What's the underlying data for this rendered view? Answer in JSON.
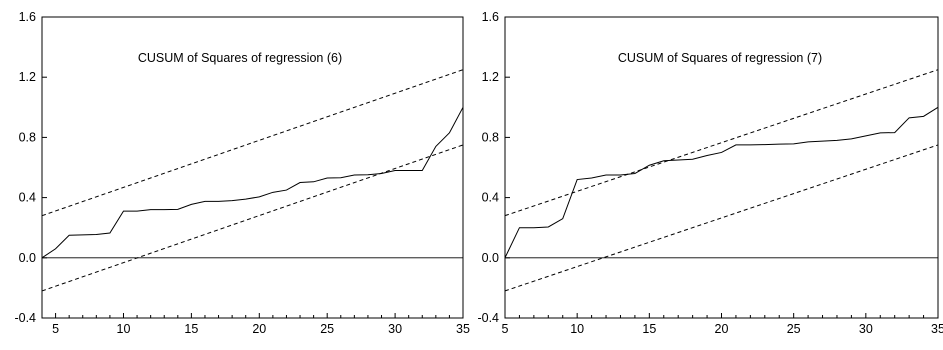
{
  "chart_data": [
    {
      "type": "line",
      "title": "CUSUM of Squares of regression (6)",
      "xlabel": "",
      "ylabel": "",
      "xlim": [
        4,
        35
      ],
      "ylim": [
        -0.4,
        1.6
      ],
      "x_ticks": [
        5,
        10,
        15,
        20,
        25,
        30,
        35
      ],
      "y_ticks": [
        -0.4,
        0.0,
        0.4,
        0.8,
        1.2,
        1.6
      ],
      "y_tick_labels": [
        "-0.4",
        "0.0",
        "0.4",
        "0.8",
        "1.2",
        "1.6"
      ],
      "grid": false,
      "zero_line": true,
      "series": [
        {
          "style": "solid",
          "x": [
            4,
            5,
            6,
            7,
            8,
            9,
            10,
            11,
            12,
            13,
            14,
            15,
            16,
            17,
            18,
            19,
            20,
            21,
            22,
            23,
            24,
            25,
            26,
            27,
            28,
            29,
            30,
            31,
            32,
            33,
            34,
            35
          ],
          "y": [
            0.0,
            0.06,
            0.15,
            0.152,
            0.155,
            0.165,
            0.31,
            0.31,
            0.32,
            0.32,
            0.322,
            0.355,
            0.375,
            0.375,
            0.38,
            0.39,
            0.405,
            0.435,
            0.45,
            0.5,
            0.505,
            0.53,
            0.532,
            0.55,
            0.552,
            0.56,
            0.58,
            0.58,
            0.58,
            0.74,
            0.83,
            1.0
          ]
        },
        {
          "style": "dashed",
          "x": [
            4,
            35
          ],
          "y": [
            0.28,
            1.25
          ]
        },
        {
          "style": "dashed",
          "x": [
            4,
            35
          ],
          "y": [
            -0.22,
            0.75
          ]
        }
      ]
    },
    {
      "type": "line",
      "title": "CUSUM of Squares of regression (7)",
      "xlabel": "",
      "ylabel": "",
      "xlim": [
        5,
        35
      ],
      "ylim": [
        -0.4,
        1.6
      ],
      "x_ticks": [
        5,
        10,
        15,
        20,
        25,
        30,
        35
      ],
      "y_ticks": [
        -0.4,
        0.0,
        0.4,
        0.8,
        1.2,
        1.6
      ],
      "y_tick_labels": [
        "-0.4",
        "0.0",
        "0.4",
        "0.8",
        "1.2",
        "1.6"
      ],
      "grid": false,
      "zero_line": true,
      "series": [
        {
          "style": "solid",
          "x": [
            5,
            6,
            7,
            8,
            9,
            10,
            11,
            12,
            13,
            14,
            15,
            16,
            17,
            18,
            19,
            20,
            21,
            22,
            23,
            24,
            25,
            26,
            27,
            28,
            29,
            30,
            31,
            32,
            33,
            34,
            35
          ],
          "y": [
            0.0,
            0.2,
            0.2,
            0.205,
            0.26,
            0.52,
            0.53,
            0.55,
            0.55,
            0.56,
            0.615,
            0.645,
            0.65,
            0.655,
            0.68,
            0.7,
            0.75,
            0.75,
            0.752,
            0.755,
            0.757,
            0.77,
            0.775,
            0.78,
            0.79,
            0.81,
            0.83,
            0.832,
            0.93,
            0.94,
            1.0
          ]
        },
        {
          "style": "dashed",
          "x": [
            5,
            35
          ],
          "y": [
            0.28,
            1.25
          ]
        },
        {
          "style": "dashed",
          "x": [
            5,
            35
          ],
          "y": [
            -0.22,
            0.75
          ]
        }
      ]
    }
  ]
}
